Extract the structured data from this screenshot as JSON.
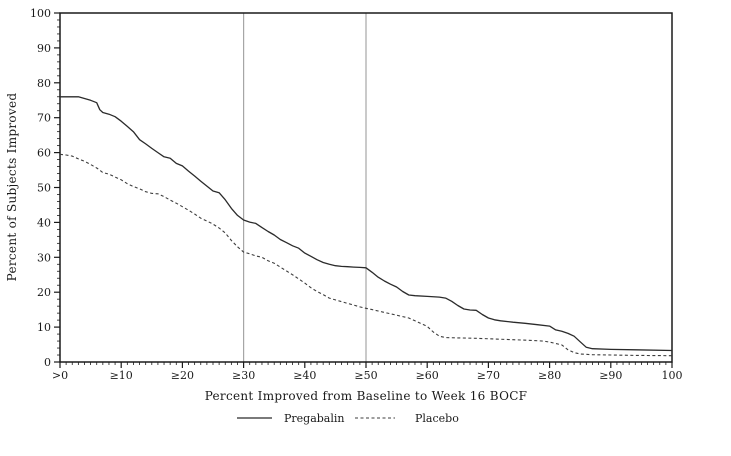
{
  "chart_data": {
    "type": "line",
    "title": "",
    "xlabel": "Percent Improved from Baseline to Week 16 BOCF",
    "ylabel": "Percent of Subjects Improved",
    "xlim": [
      0,
      100
    ],
    "ylim": [
      0,
      100
    ],
    "grid": "off",
    "legend_position": "bottom",
    "x_tick_values": [
      0,
      10,
      20,
      30,
      40,
      50,
      60,
      70,
      80,
      90,
      100
    ],
    "x_tick_labels": [
      ">0",
      "≥10",
      "≥20",
      "≥30",
      "≥40",
      "≥50",
      "≥60",
      "≥70",
      "≥80",
      "≥90",
      "100"
    ],
    "y_tick_values": [
      0,
      10,
      20,
      30,
      40,
      50,
      60,
      70,
      80,
      90,
      100
    ],
    "x_minor_step": 1,
    "y_minor_step": 2,
    "reference_lines_x": [
      30,
      50
    ],
    "colors": {
      "axis": "#1a1a1a",
      "pregabalin_line": "#2b2b2b",
      "placebo_line": "#3d3d3d",
      "reference_line": "#a6a6a6",
      "background": "#ffffff"
    },
    "series": [
      {
        "name": "Pregabalin",
        "style": "solid",
        "points": [
          [
            0,
            76
          ],
          [
            3,
            76
          ],
          [
            4,
            75.5
          ],
          [
            5,
            75
          ],
          [
            6,
            74.3
          ],
          [
            6.5,
            72.3
          ],
          [
            7,
            71.5
          ],
          [
            8,
            71
          ],
          [
            9,
            70.3
          ],
          [
            10,
            69
          ],
          [
            11,
            67.5
          ],
          [
            12,
            66
          ],
          [
            13,
            63.7
          ],
          [
            14,
            62.5
          ],
          [
            15,
            61.2
          ],
          [
            16,
            60
          ],
          [
            17,
            58.8
          ],
          [
            18,
            58.4
          ],
          [
            19,
            56.9
          ],
          [
            20,
            56.2
          ],
          [
            21,
            54.7
          ],
          [
            22,
            53.3
          ],
          [
            23,
            51.8
          ],
          [
            24,
            50.4
          ],
          [
            25,
            49
          ],
          [
            26,
            48.5
          ],
          [
            27,
            46.5
          ],
          [
            28,
            44
          ],
          [
            29,
            42
          ],
          [
            30,
            40.7
          ],
          [
            31,
            40.1
          ],
          [
            32,
            39.7
          ],
          [
            33,
            38.5
          ],
          [
            34,
            37.4
          ],
          [
            35,
            36.4
          ],
          [
            36,
            35.1
          ],
          [
            37,
            34.2
          ],
          [
            38,
            33.3
          ],
          [
            39,
            32.6
          ],
          [
            40,
            31.2
          ],
          [
            41,
            30.3
          ],
          [
            42,
            29.3
          ],
          [
            43,
            28.5
          ],
          [
            44,
            28
          ],
          [
            45,
            27.6
          ],
          [
            46,
            27.4
          ],
          [
            47,
            27.3
          ],
          [
            48,
            27.2
          ],
          [
            49,
            27.1
          ],
          [
            50,
            27
          ],
          [
            51,
            25.7
          ],
          [
            52,
            24.3
          ],
          [
            53,
            23.2
          ],
          [
            54,
            22.3
          ],
          [
            55,
            21.5
          ],
          [
            56,
            20.2
          ],
          [
            57,
            19.2
          ],
          [
            58,
            19
          ],
          [
            60,
            18.8
          ],
          [
            62,
            18.6
          ],
          [
            63,
            18.3
          ],
          [
            64,
            17.4
          ],
          [
            65,
            16.2
          ],
          [
            66,
            15.2
          ],
          [
            67,
            14.9
          ],
          [
            68,
            14.8
          ],
          [
            69,
            13.6
          ],
          [
            70,
            12.6
          ],
          [
            71,
            12.1
          ],
          [
            72,
            11.8
          ],
          [
            74,
            11.4
          ],
          [
            76,
            11.1
          ],
          [
            78,
            10.7
          ],
          [
            80,
            10.3
          ],
          [
            81,
            9.2
          ],
          [
            82,
            8.8
          ],
          [
            83,
            8.2
          ],
          [
            84,
            7.4
          ],
          [
            85,
            5.8
          ],
          [
            86,
            4.2
          ],
          [
            87,
            3.8
          ],
          [
            90,
            3.6
          ],
          [
            94,
            3.5
          ],
          [
            100,
            3.3
          ]
        ]
      },
      {
        "name": "Placebo",
        "style": "dashed",
        "points": [
          [
            0,
            59.5
          ],
          [
            1,
            59.3
          ],
          [
            2,
            59
          ],
          [
            3,
            58.2
          ],
          [
            4,
            57.5
          ],
          [
            5,
            56.6
          ],
          [
            6,
            55.6
          ],
          [
            7,
            54.3
          ],
          [
            8,
            53.8
          ],
          [
            9,
            53
          ],
          [
            10,
            52.2
          ],
          [
            11,
            51.1
          ],
          [
            12,
            50.3
          ],
          [
            13,
            49.6
          ],
          [
            14,
            48.8
          ],
          [
            15,
            48.3
          ],
          [
            16,
            48.2
          ],
          [
            17,
            47.4
          ],
          [
            18,
            46.4
          ],
          [
            19,
            45.5
          ],
          [
            20,
            44.5
          ],
          [
            21,
            43.5
          ],
          [
            22,
            42.4
          ],
          [
            23,
            41.2
          ],
          [
            24,
            40.4
          ],
          [
            25,
            39.5
          ],
          [
            26,
            38.4
          ],
          [
            27,
            37
          ],
          [
            28,
            34.8
          ],
          [
            29,
            33
          ],
          [
            30,
            31.5
          ],
          [
            31,
            31
          ],
          [
            32,
            30.4
          ],
          [
            33,
            30
          ],
          [
            34,
            29
          ],
          [
            35,
            28.3
          ],
          [
            36,
            27.2
          ],
          [
            37,
            26.1
          ],
          [
            38,
            25
          ],
          [
            39,
            23.8
          ],
          [
            40,
            22.6
          ],
          [
            41,
            21.3
          ],
          [
            42,
            20.2
          ],
          [
            43,
            19.3
          ],
          [
            44,
            18.3
          ],
          [
            45,
            17.8
          ],
          [
            46,
            17.3
          ],
          [
            47,
            16.8
          ],
          [
            48,
            16.3
          ],
          [
            49,
            15.8
          ],
          [
            50,
            15.4
          ],
          [
            51,
            15
          ],
          [
            52,
            14.6
          ],
          [
            53,
            14.2
          ],
          [
            54,
            13.8
          ],
          [
            55,
            13.4
          ],
          [
            56,
            13
          ],
          [
            57,
            12.6
          ],
          [
            58,
            11.8
          ],
          [
            59,
            11
          ],
          [
            60,
            10.2
          ],
          [
            61,
            8.6
          ],
          [
            62,
            7.4
          ],
          [
            63,
            7
          ],
          [
            65,
            6.9
          ],
          [
            68,
            6.8
          ],
          [
            71,
            6.6
          ],
          [
            74,
            6.4
          ],
          [
            77,
            6.2
          ],
          [
            79,
            6
          ],
          [
            80,
            5.7
          ],
          [
            81,
            5.3
          ],
          [
            82,
            4.9
          ],
          [
            83,
            3.5
          ],
          [
            84,
            2.7
          ],
          [
            85,
            2.3
          ],
          [
            87,
            2.1
          ],
          [
            90,
            2
          ],
          [
            94,
            1.9
          ],
          [
            100,
            1.8
          ]
        ]
      }
    ]
  }
}
